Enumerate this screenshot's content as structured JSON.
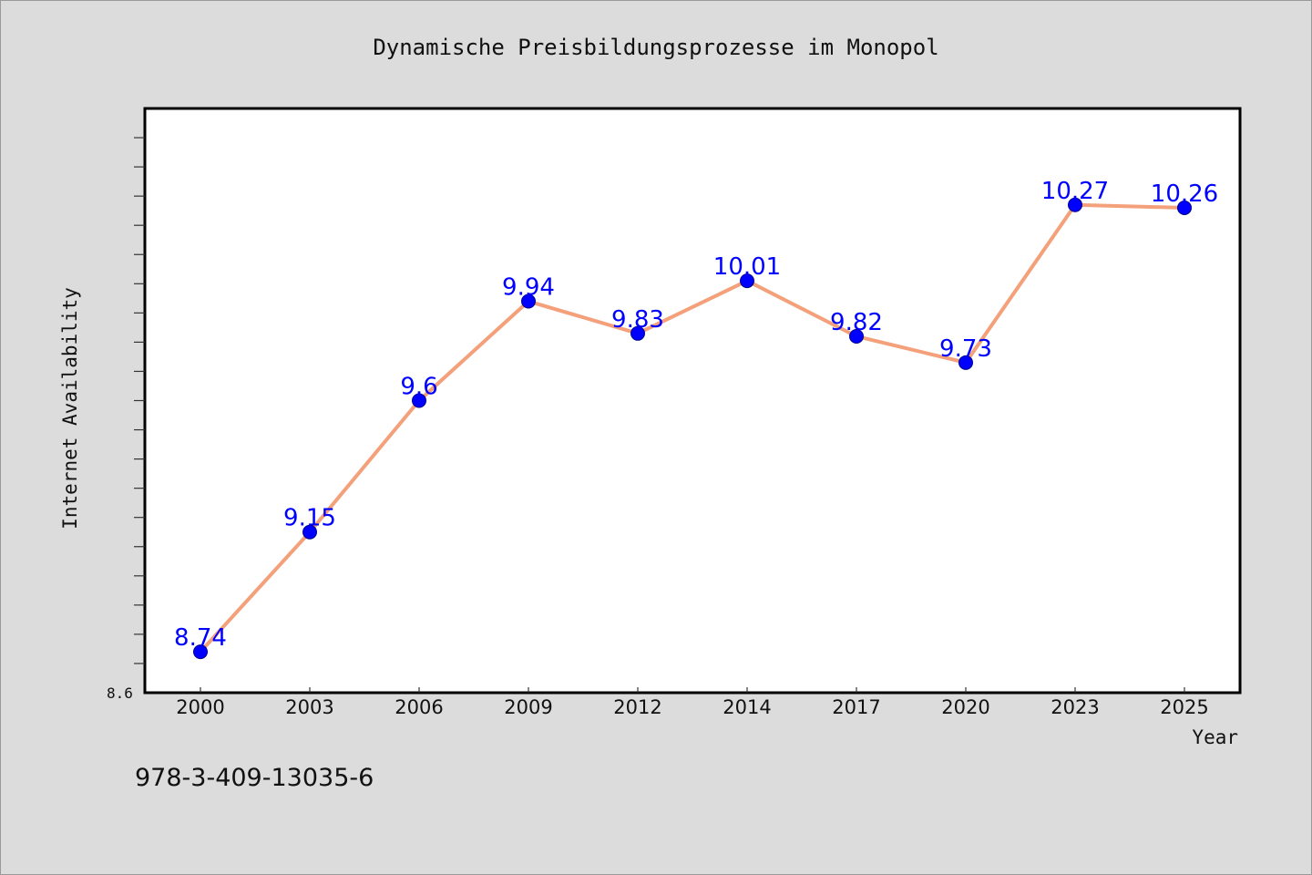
{
  "chart_data": {
    "type": "line",
    "title": "Dynamische Preisbildungsprozesse im Monopol",
    "xlabel": "Year",
    "ylabel": "Internet Availability",
    "categories": [
      "2000",
      "2003",
      "2006",
      "2009",
      "2012",
      "2014",
      "2017",
      "2020",
      "2023",
      "2025"
    ],
    "series": [
      {
        "values": [
          8.74,
          9.15,
          9.6,
          9.94,
          9.83,
          10.01,
          9.82,
          9.73,
          10.27,
          10.26
        ],
        "data_labels": [
          "8.74",
          "9.15",
          "9.6",
          "9.94",
          "9.83",
          "10.01",
          "9.82",
          "9.73",
          "10.27",
          "10.26"
        ]
      }
    ],
    "ylim": [
      8.6,
      10.6
    ],
    "y_tick_label": "8.6",
    "grid": false,
    "colors": {
      "line": "#f4a07a",
      "marker": "#0000ff",
      "data_label": "#0000ff",
      "plot_background": "#ffffff",
      "page_background": "#dcdcdc"
    }
  },
  "footer": {
    "isbn": "978-3-409-13035-6"
  }
}
